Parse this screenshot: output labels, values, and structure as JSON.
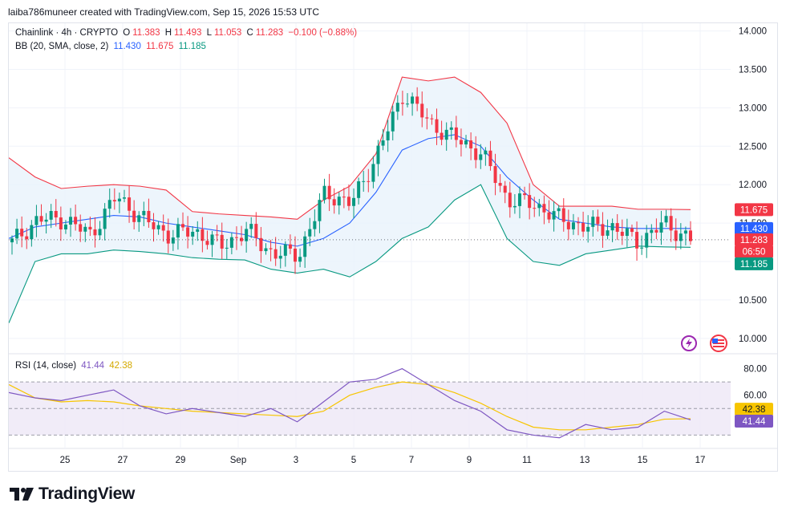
{
  "header": {
    "credit": "laiba786muneer created with TradingView.com, Sep 15, 2026 15:53 UTC"
  },
  "legend": {
    "symbol": "Chainlink · 4h · CRYPTO",
    "o_label": "O",
    "o": "11.383",
    "h_label": "H",
    "h": "11.493",
    "l_label": "L",
    "l": "11.053",
    "c_label": "C",
    "c": "11.283",
    "change": "−0.100 (−0.88%)",
    "bb_label": "BB (20, SMA, close, 2)",
    "bb_basis": "11.430",
    "bb_upper": "11.675",
    "bb_lower": "11.185",
    "rsi_label": "RSI (14, close)",
    "rsi_value": "41.44",
    "rsi_ma": "42.38"
  },
  "price_axis": {
    "ticks": [
      "14.000",
      "13.500",
      "13.000",
      "12.500",
      "12.000",
      "11.500",
      "11.000",
      "10.500",
      "10.000"
    ],
    "badges": [
      {
        "text": "11.675",
        "color": "#f23645",
        "value": 11.675
      },
      {
        "text": "11.430",
        "color": "#2962ff",
        "value": 11.43
      },
      {
        "text": "11.283",
        "color": "#f23645",
        "value": 11.283
      },
      {
        "text": "06:50",
        "color": "#f23645",
        "value": 11.13
      },
      {
        "text": "11.185",
        "color": "#089981",
        "value": 10.97
      }
    ]
  },
  "rsi_axis": {
    "ticks": [
      "80.00",
      "60.00"
    ],
    "badges": [
      {
        "text": "42.38",
        "color": "#f7c500",
        "text_color": "#131722",
        "value": 49.5
      },
      {
        "text": "41.44",
        "color": "#7e57c2",
        "text_color": "#ffffff",
        "value": 40.5
      }
    ]
  },
  "time_axis": {
    "labels": [
      "25",
      "27",
      "29",
      "Sep",
      "3",
      "5",
      "7",
      "9",
      "11",
      "13",
      "15",
      "17"
    ]
  },
  "icons": [
    "lightning-icon",
    "flag-usa-icon"
  ],
  "brand": {
    "name": "TradingView"
  },
  "colors": {
    "up": "#089981",
    "down": "#f23645",
    "bb_upper": "#f23645",
    "bb_basis": "#2962ff",
    "bb_lower": "#089981",
    "bb_fill": "#e8f3fb",
    "rsi": "#7e57c2",
    "rsi_ma": "#f7c500",
    "rsi_band": "#ede7f6"
  },
  "chart_data": [
    {
      "type": "candlestick",
      "title": "Chainlink · 4h · CRYPTO",
      "ylim": [
        9.8,
        14.1
      ],
      "x_labels": [
        "25",
        "27",
        "29",
        "Sep",
        "3",
        "5",
        "7",
        "9",
        "11",
        "13",
        "15",
        "17"
      ],
      "anchors": [
        {
          "date": "Aug 23 12:00",
          "price": 11.25
        },
        {
          "date": "Aug 24",
          "price": 11.55
        },
        {
          "date": "Aug 25",
          "price": 11.55
        },
        {
          "date": "Aug 26",
          "price": 11.35
        },
        {
          "date": "Aug 27",
          "price": 11.85
        },
        {
          "date": "Aug 28",
          "price": 11.55
        },
        {
          "date": "Aug 29",
          "price": 11.35
        },
        {
          "date": "Aug 30",
          "price": 11.4
        },
        {
          "date": "Aug 31",
          "price": 11.2
        },
        {
          "date": "Sep 1",
          "price": 11.4
        },
        {
          "date": "Sep 2",
          "price": 11.1
        },
        {
          "date": "Sep 3",
          "price": 11.1
        },
        {
          "date": "Sep 4",
          "price": 11.9
        },
        {
          "date": "Sep 5",
          "price": 11.75
        },
        {
          "date": "Sep 6",
          "price": 12.4
        },
        {
          "date": "Sep 6 20:00",
          "price": 13.2
        },
        {
          "date": "Sep 7 12:00",
          "price": 12.8
        },
        {
          "date": "Sep 8",
          "price": 12.6
        },
        {
          "date": "Sep 9",
          "price": 12.4
        },
        {
          "date": "Sep 9 20:00",
          "price": 11.8
        },
        {
          "date": "Sep 10",
          "price": 11.75
        },
        {
          "date": "Sep 11",
          "price": 11.55
        },
        {
          "date": "Sep 12",
          "price": 11.45
        },
        {
          "date": "Sep 13",
          "price": 11.45
        },
        {
          "date": "Sep 14",
          "price": 11.25
        },
        {
          "date": "Sep 15",
          "price": 11.5
        },
        {
          "date": "Sep 15 12:00",
          "price": 11.28
        }
      ],
      "series": [
        {
          "name": "BB upper",
          "values": [
            12.35,
            12.1,
            11.95,
            11.98,
            12.0,
            11.98,
            11.93,
            11.65,
            11.62,
            11.6,
            11.58,
            11.55,
            11.8,
            11.98,
            12.4,
            13.4,
            13.35,
            13.4,
            13.2,
            12.8,
            12.0,
            11.72,
            11.72,
            11.72,
            11.68,
            11.68,
            11.675
          ]
        },
        {
          "name": "BB basis",
          "values": [
            11.3,
            11.45,
            11.5,
            11.55,
            11.6,
            11.58,
            11.5,
            11.45,
            11.4,
            11.35,
            11.25,
            11.2,
            11.3,
            11.5,
            11.9,
            12.45,
            12.6,
            12.65,
            12.5,
            12.1,
            11.8,
            11.55,
            11.5,
            11.45,
            11.43,
            11.43,
            11.43
          ]
        },
        {
          "name": "BB lower",
          "values": [
            10.2,
            11.0,
            11.1,
            11.1,
            11.15,
            11.13,
            11.1,
            11.05,
            11.03,
            11.02,
            10.9,
            10.85,
            10.9,
            10.8,
            11.0,
            11.3,
            11.45,
            11.8,
            12.0,
            11.3,
            11.0,
            10.95,
            11.1,
            11.15,
            11.2,
            11.19,
            11.185
          ]
        }
      ]
    },
    {
      "type": "line",
      "title": "RSI (14, close)",
      "ylim": [
        20,
        90
      ],
      "y_ticks": [
        80,
        60
      ],
      "band": [
        30,
        70
      ],
      "series": [
        {
          "name": "RSI",
          "values": [
            62,
            58,
            56,
            60,
            64,
            52,
            46,
            50,
            47,
            44,
            50,
            40,
            55,
            70,
            72,
            80,
            68,
            56,
            48,
            34,
            30,
            28,
            38,
            34,
            36,
            48,
            41.44
          ]
        },
        {
          "name": "RSI MA",
          "values": [
            68,
            58,
            55,
            56,
            55,
            52,
            50,
            48,
            47,
            46,
            45,
            44,
            48,
            60,
            66,
            70,
            68,
            62,
            54,
            44,
            36,
            34,
            34,
            36,
            38,
            42,
            42.38
          ]
        }
      ]
    }
  ]
}
